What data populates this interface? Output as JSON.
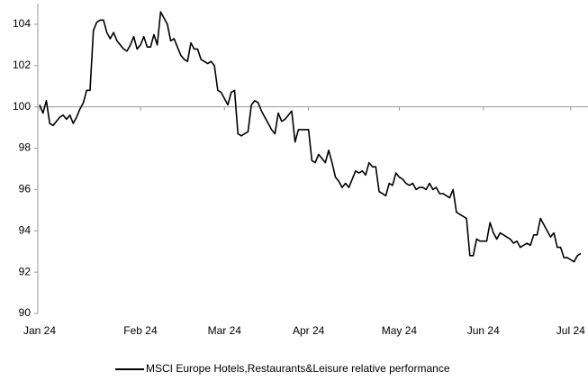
{
  "chart_data": {
    "type": "line",
    "categories": [
      "Jan 24",
      null,
      null,
      null,
      null,
      null,
      null,
      null,
      null,
      null,
      null,
      null,
      null,
      null,
      null,
      null,
      null,
      null,
      null,
      null,
      null,
      null,
      null,
      null,
      null,
      null,
      null,
      null,
      null,
      null,
      "Feb 24",
      null,
      null,
      null,
      null,
      null,
      null,
      null,
      null,
      null,
      null,
      null,
      null,
      null,
      null,
      null,
      null,
      null,
      null,
      null,
      null,
      null,
      null,
      null,
      null,
      "Mar 24",
      null,
      null,
      null,
      null,
      null,
      null,
      null,
      null,
      null,
      null,
      null,
      null,
      null,
      null,
      null,
      null,
      null,
      null,
      null,
      null,
      null,
      null,
      null,
      null,
      "Apr 24",
      null,
      null,
      null,
      null,
      null,
      null,
      null,
      null,
      null,
      null,
      null,
      null,
      null,
      null,
      null,
      null,
      null,
      null,
      null,
      null,
      null,
      null,
      null,
      null,
      null,
      null,
      "May 24",
      null,
      null,
      null,
      null,
      null,
      null,
      null,
      null,
      null,
      null,
      null,
      null,
      null,
      null,
      null,
      null,
      null,
      null,
      null,
      null,
      null,
      null,
      null,
      null,
      "Jun 24",
      null,
      null,
      null,
      null,
      null,
      null,
      null,
      null,
      null,
      null,
      null,
      null,
      null,
      null,
      null,
      null,
      null,
      null,
      null,
      null,
      null,
      null,
      null,
      null,
      null,
      "Jul 24",
      null,
      null,
      null
    ],
    "series": [
      {
        "name": "MSCI Europe Hotels,Restaurants&Leisure relative performance",
        "color": "#000000",
        "values": [
          100.1,
          99.7,
          100.3,
          99.2,
          99.1,
          99.3,
          99.5,
          99.6,
          99.4,
          99.6,
          99.2,
          99.5,
          99.9,
          100.2,
          100.8,
          100.8,
          103.7,
          104.1,
          104.2,
          104.2,
          103.6,
          103.3,
          103.6,
          103.2,
          103.0,
          102.8,
          102.7,
          103.0,
          103.4,
          102.8,
          103.0,
          103.4,
          102.9,
          102.9,
          103.5,
          103.0,
          104.6,
          104.3,
          104.0,
          103.2,
          103.3,
          102.9,
          102.5,
          102.3,
          102.2,
          103.1,
          102.8,
          102.8,
          102.3,
          102.2,
          102.1,
          102.2,
          102.0,
          100.8,
          100.7,
          100.4,
          100.1,
          100.7,
          100.8,
          98.7,
          98.6,
          98.7,
          98.8,
          100.1,
          100.3,
          100.2,
          99.8,
          99.5,
          99.2,
          98.9,
          98.7,
          99.7,
          99.3,
          99.4,
          99.6,
          99.8,
          98.3,
          98.9,
          98.9,
          98.9,
          98.9,
          97.4,
          97.3,
          97.7,
          97.5,
          97.3,
          97.9,
          97.3,
          96.6,
          96.4,
          96.1,
          96.3,
          96.1,
          96.5,
          96.9,
          96.8,
          96.9,
          96.7,
          97.3,
          97.1,
          97.1,
          95.9,
          95.8,
          95.7,
          96.3,
          96.2,
          96.8,
          96.6,
          96.5,
          96.3,
          96.2,
          96.3,
          96.0,
          96.1,
          96.1,
          96.0,
          96.3,
          96.0,
          96.1,
          95.8,
          95.8,
          95.7,
          95.6,
          96.0,
          94.9,
          94.8,
          94.7,
          94.6,
          92.8,
          92.8,
          93.6,
          93.5,
          93.5,
          93.5,
          94.4,
          93.9,
          93.6,
          93.9,
          93.8,
          93.7,
          93.6,
          93.4,
          93.5,
          93.2,
          93.3,
          93.4,
          93.3,
          93.8,
          93.8,
          94.6,
          94.3,
          94.0,
          93.7,
          93.9,
          93.2,
          93.2,
          92.7,
          92.7,
          92.6,
          92.5,
          92.8,
          92.9
        ]
      }
    ],
    "ylim": [
      90,
      105
    ],
    "yticks": [
      90,
      92,
      94,
      96,
      98,
      100,
      102,
      104
    ],
    "x_axis_at": 100,
    "grid": false,
    "legend": "bottom"
  }
}
